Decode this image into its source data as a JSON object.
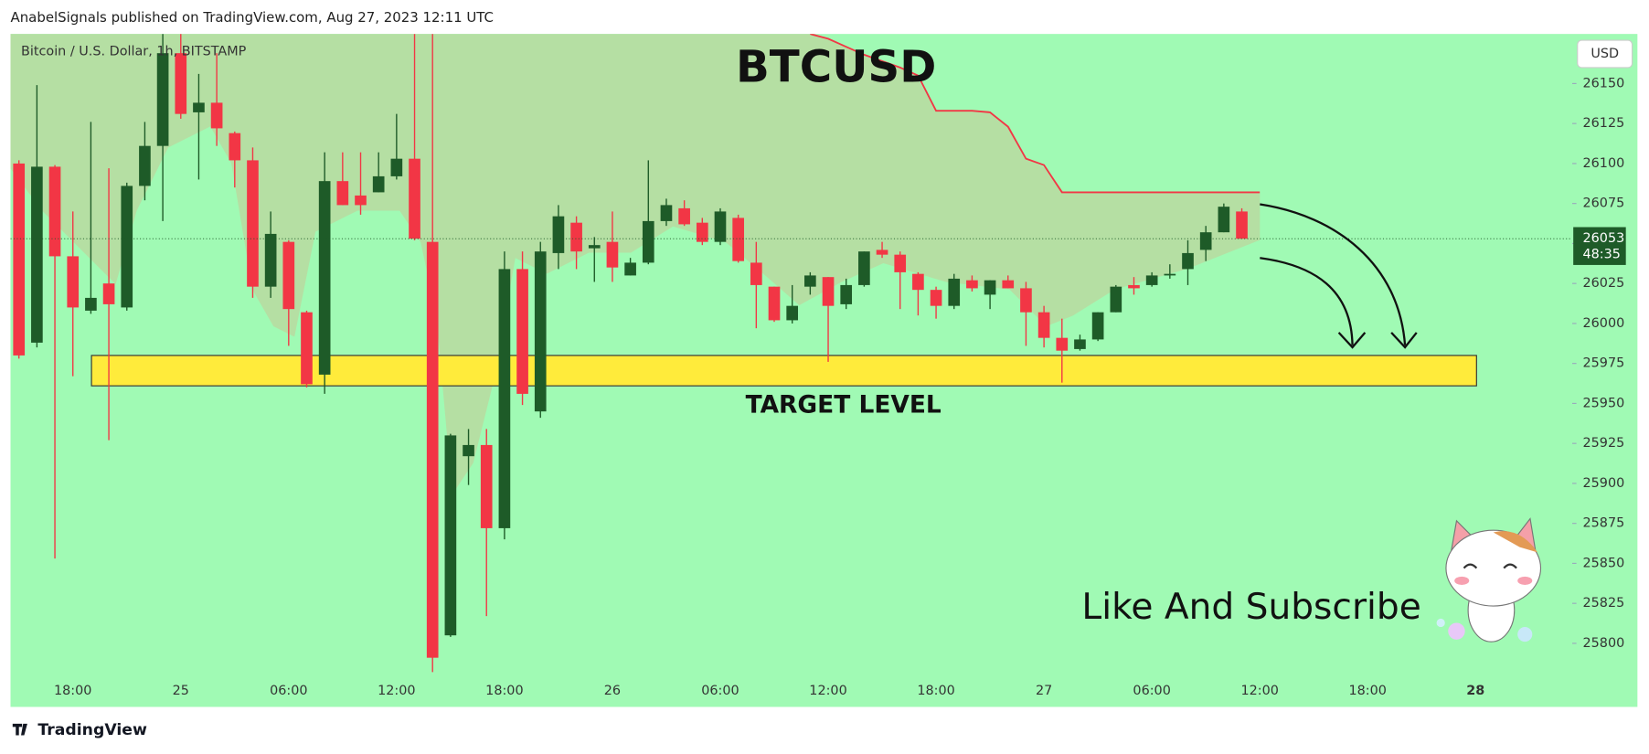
{
  "header": {
    "text": "AnabelSignals published on TradingView.com, Aug 27, 2023 12:11 UTC"
  },
  "footer": {
    "brand": "TradingView"
  },
  "chart_data": {
    "type": "candlestick",
    "symbol": "Bitcoin / U.S. Dollar, 1h, BITSTAMP",
    "title": "BTCUSD",
    "currency": "USD",
    "annotation": "Like And Subscribe",
    "background": "#a0fab4",
    "up_color": "#1e5b28",
    "down_color": "#f23645",
    "categories": [
      null,
      null,
      null,
      "18:00",
      null,
      null,
      null,
      null,
      null,
      "25",
      null,
      null,
      null,
      null,
      null,
      "06:00",
      null,
      null,
      null,
      null,
      null,
      "12:00",
      null,
      null,
      null,
      null,
      null,
      "18:00",
      null,
      null,
      null,
      null,
      null,
      "26",
      null,
      null,
      null,
      null,
      null,
      "06:00",
      null,
      null,
      null,
      null,
      null,
      "12:00",
      null,
      null,
      null,
      null,
      null,
      "18:00",
      null,
      null,
      null,
      null,
      null,
      "27",
      null,
      null,
      null,
      null,
      null,
      "06:00",
      null,
      null,
      null,
      null,
      null,
      "12:00",
      null,
      null,
      null,
      null,
      null,
      "18:00",
      null,
      null,
      null,
      null,
      null,
      "28"
    ],
    "open": [
      26100,
      25988,
      26098,
      26042,
      26008,
      26025,
      26010,
      26086,
      26111,
      26169,
      26132,
      26138,
      26119,
      26102,
      26023,
      26051,
      26007,
      25968,
      26089,
      26080,
      26082,
      26092,
      26103,
      26051,
      25805,
      25917,
      25924,
      25872,
      26034,
      25945,
      26044,
      26063,
      26047,
      26051,
      26030,
      26038,
      26064,
      26072,
      26063,
      26051,
      26066,
      26038,
      26023,
      26002,
      26023,
      26029,
      26012,
      26024,
      26046,
      26043,
      26031,
      26021,
      26011,
      26027,
      26018,
      26027,
      26022,
      26007,
      25991,
      25984,
      25990,
      26007,
      26024,
      26024,
      26030,
      26034,
      26046,
      26057,
      26070,
      null,
      null,
      null,
      null,
      null,
      null,
      null,
      null,
      null,
      null,
      null,
      null,
      null
    ],
    "high": [
      26102,
      26149,
      26099,
      26070,
      26126,
      26097,
      26088,
      26126,
      26181,
      26181,
      26156,
      26169,
      26120,
      26110,
      26070,
      26052,
      26008,
      26107,
      26107,
      26107,
      26107,
      26131,
      26181,
      26181,
      25931,
      25934,
      25934,
      26045,
      26045,
      26051,
      26074,
      26067,
      26054,
      26070,
      26041,
      26102,
      26078,
      26077,
      26066,
      26072,
      26068,
      26051,
      26023,
      26024,
      26032,
      26029,
      26028,
      26045,
      26051,
      26045,
      26032,
      26023,
      26031,
      26030,
      26027,
      26030,
      26026,
      26011,
      26003,
      25993,
      26007,
      26024,
      26029,
      26032,
      26037,
      26052,
      26061,
      26075,
      26072,
      null,
      null,
      null,
      null,
      null,
      null,
      null,
      null,
      null,
      null,
      null,
      null,
      null
    ],
    "low": [
      25978,
      25985,
      25853,
      25967,
      26006,
      25927,
      26008,
      26077,
      26064,
      26128,
      26090,
      26111,
      26085,
      26016,
      26016,
      25986,
      25960,
      25956,
      26074,
      26068,
      26082,
      26090,
      26052,
      25782,
      25804,
      25899,
      25817,
      25865,
      25949,
      25941,
      26034,
      26034,
      26026,
      26026,
      26030,
      26037,
      26061,
      26061,
      26049,
      26049,
      26038,
      25997,
      26001,
      26000,
      26018,
      25976,
      26009,
      26023,
      26041,
      26009,
      26005,
      26003,
      26009,
      26020,
      26009,
      26022,
      25986,
      25985,
      25963,
      25983,
      25989,
      26007,
      26018,
      26023,
      26028,
      26024,
      26039,
      26057,
      26053,
      null,
      null,
      null,
      null,
      null,
      null,
      null,
      null,
      null,
      null,
      null,
      null,
      null
    ],
    "close": [
      25980,
      26098,
      26042,
      26010,
      26016,
      26012,
      26086,
      26111,
      26169,
      26131,
      26138,
      26122,
      26102,
      26023,
      26056,
      26009,
      25962,
      26089,
      26074,
      26074,
      26092,
      26103,
      26053,
      25791,
      25930,
      25924,
      25872,
      26034,
      25956,
      26045,
      26067,
      26045,
      26049,
      26035,
      26038,
      26064,
      26074,
      26062,
      26051,
      26070,
      26039,
      26024,
      26002,
      26011,
      26030,
      26011,
      26024,
      26045,
      26043,
      26032,
      26021,
      26011,
      26028,
      26022,
      26027,
      26022,
      26007,
      25991,
      25983,
      25990,
      26007,
      26023,
      26022,
      26030,
      26031,
      26044,
      26057,
      26073,
      26053,
      null,
      null,
      null,
      null,
      null,
      null,
      null,
      null,
      null,
      null,
      null,
      null,
      null
    ],
    "indicator": {
      "color": "#f23645",
      "values": [
        null,
        null,
        null,
        null,
        null,
        null,
        null,
        null,
        null,
        null,
        null,
        null,
        null,
        null,
        null,
        null,
        null,
        null,
        null,
        null,
        null,
        null,
        null,
        null,
        null,
        null,
        null,
        null,
        null,
        null,
        null,
        null,
        null,
        null,
        null,
        null,
        null,
        null,
        null,
        null,
        null,
        null,
        null,
        null,
        26181,
        26178,
        26173,
        26168,
        26164,
        26160,
        26155,
        26133,
        26133,
        26133,
        26132,
        26123,
        26103,
        26099,
        26082,
        26082,
        26082,
        26082,
        26082,
        26082,
        26082,
        26082,
        26082,
        26082,
        26082,
        26082,
        null,
        null,
        null,
        null,
        null,
        null,
        null,
        null,
        null,
        null,
        null,
        null
      ]
    },
    "current_price": 26053,
    "countdown": "48:35",
    "target_zone": {
      "label": "TARGET LEVEL",
      "top": 25980,
      "bottom": 25961,
      "color": "#ffeb3b"
    },
    "ylim": [
      25778,
      26181
    ],
    "yticks": [
      25800,
      25825,
      25850,
      25875,
      25900,
      25925,
      25950,
      25975,
      26000,
      26025,
      26050,
      26075,
      26100,
      26125,
      26150
    ]
  }
}
